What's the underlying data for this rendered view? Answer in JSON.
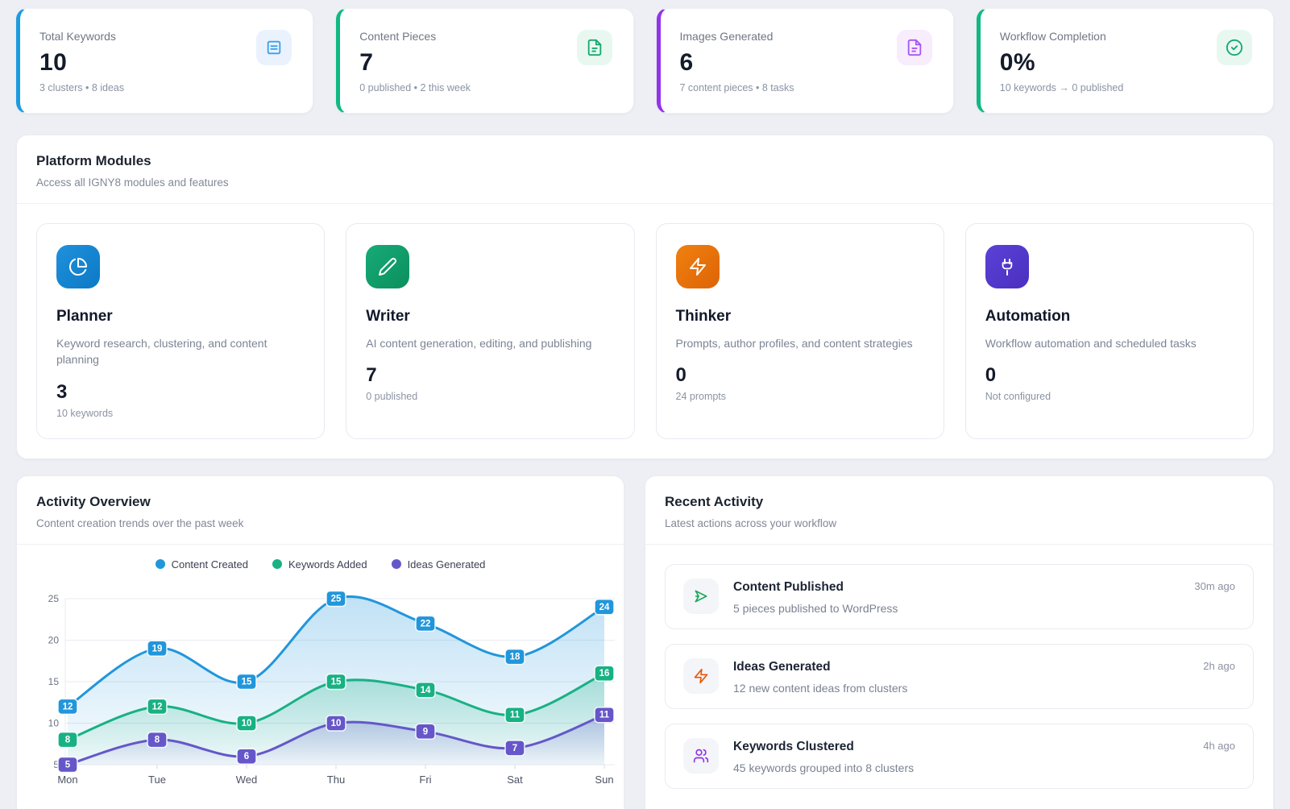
{
  "stats": [
    {
      "label": "Total Keywords",
      "value": "10",
      "sub": "3 clusters • 8 ideas",
      "accent": "#1d9be0",
      "icon": "list-square-icon",
      "icon_bg": "#eaf2fd",
      "icon_color": "#3aa0ea"
    },
    {
      "label": "Content Pieces",
      "value": "7",
      "sub": "0 published • 2 this week",
      "accent": "#10b981",
      "icon": "file-text-icon",
      "icon_bg": "#e8f8f0",
      "icon_color": "#16a86f"
    },
    {
      "label": "Images Generated",
      "value": "6",
      "sub": "7 content pieces • 8 tasks",
      "accent": "#9333ea",
      "icon": "image-file-icon",
      "icon_bg": "#f7edfc",
      "icon_color": "#a855f7"
    },
    {
      "label": "Workflow Completion",
      "value": "0%",
      "sub": "10 keywords → 0 published",
      "accent": "#10b981",
      "icon": "check-circle-icon",
      "icon_bg": "#e8f8f0",
      "icon_color": "#16a86f"
    }
  ],
  "modules_section": {
    "title": "Platform Modules",
    "subtitle": "Access all IGNY8 modules and features"
  },
  "modules": [
    {
      "name": "Planner",
      "description": "Keyword research, clustering, and content planning",
      "value": "3",
      "stat": "10 keywords",
      "icon": "pie-chart-icon",
      "color_from": "#2091dd",
      "color_to": "#0c79c4"
    },
    {
      "name": "Writer",
      "description": "AI content generation, editing, and publishing",
      "value": "7",
      "stat": "0 published",
      "icon": "pencil-icon",
      "color_from": "#17ab77",
      "color_to": "#0b8f5e"
    },
    {
      "name": "Thinker",
      "description": "Prompts, author profiles, and content strategies",
      "value": "0",
      "stat": "24 prompts",
      "icon": "lightning-icon",
      "color_from": "#f0810f",
      "color_to": "#dd6306"
    },
    {
      "name": "Automation",
      "description": "Workflow automation and scheduled tasks",
      "value": "0",
      "stat": "Not configured",
      "icon": "plug-icon",
      "color_from": "#5b41d6",
      "color_to": "#4a2fc0"
    }
  ],
  "activity_section": {
    "title": "Activity Overview",
    "subtitle": "Content creation trends over the past week"
  },
  "chart_data": {
    "type": "area",
    "x": [
      "Mon",
      "Tue",
      "Wed",
      "Thu",
      "Fri",
      "Sat",
      "Sun"
    ],
    "series": [
      {
        "name": "Content Created",
        "color": "#2196db",
        "values": [
          12,
          19,
          15,
          25,
          22,
          18,
          24
        ]
      },
      {
        "name": "Keywords Added",
        "color": "#18b183",
        "values": [
          8,
          12,
          10,
          15,
          14,
          11,
          16
        ]
      },
      {
        "name": "Ideas Generated",
        "color": "#6557c9",
        "values": [
          5,
          8,
          6,
          10,
          9,
          7,
          11
        ]
      }
    ],
    "ylim": [
      5,
      25
    ],
    "yticks": [
      5,
      10,
      15,
      20,
      25
    ],
    "grid": true,
    "smooth": true,
    "point_labels": true,
    "legend_position": "top"
  },
  "recent_section": {
    "title": "Recent Activity",
    "subtitle": "Latest actions across your workflow"
  },
  "recent_items": [
    {
      "title": "Content Published",
      "description": "5 pieces published to WordPress",
      "time": "30m ago",
      "icon": "send-icon",
      "icon_color": "#1ea75c"
    },
    {
      "title": "Ideas Generated",
      "description": "12 new content ideas from clusters",
      "time": "2h ago",
      "icon": "lightning-icon",
      "icon_color": "#ea580c"
    },
    {
      "title": "Keywords Clustered",
      "description": "45 keywords grouped into 8 clusters",
      "time": "4h ago",
      "icon": "users-icon",
      "icon_color": "#9333ea"
    }
  ]
}
